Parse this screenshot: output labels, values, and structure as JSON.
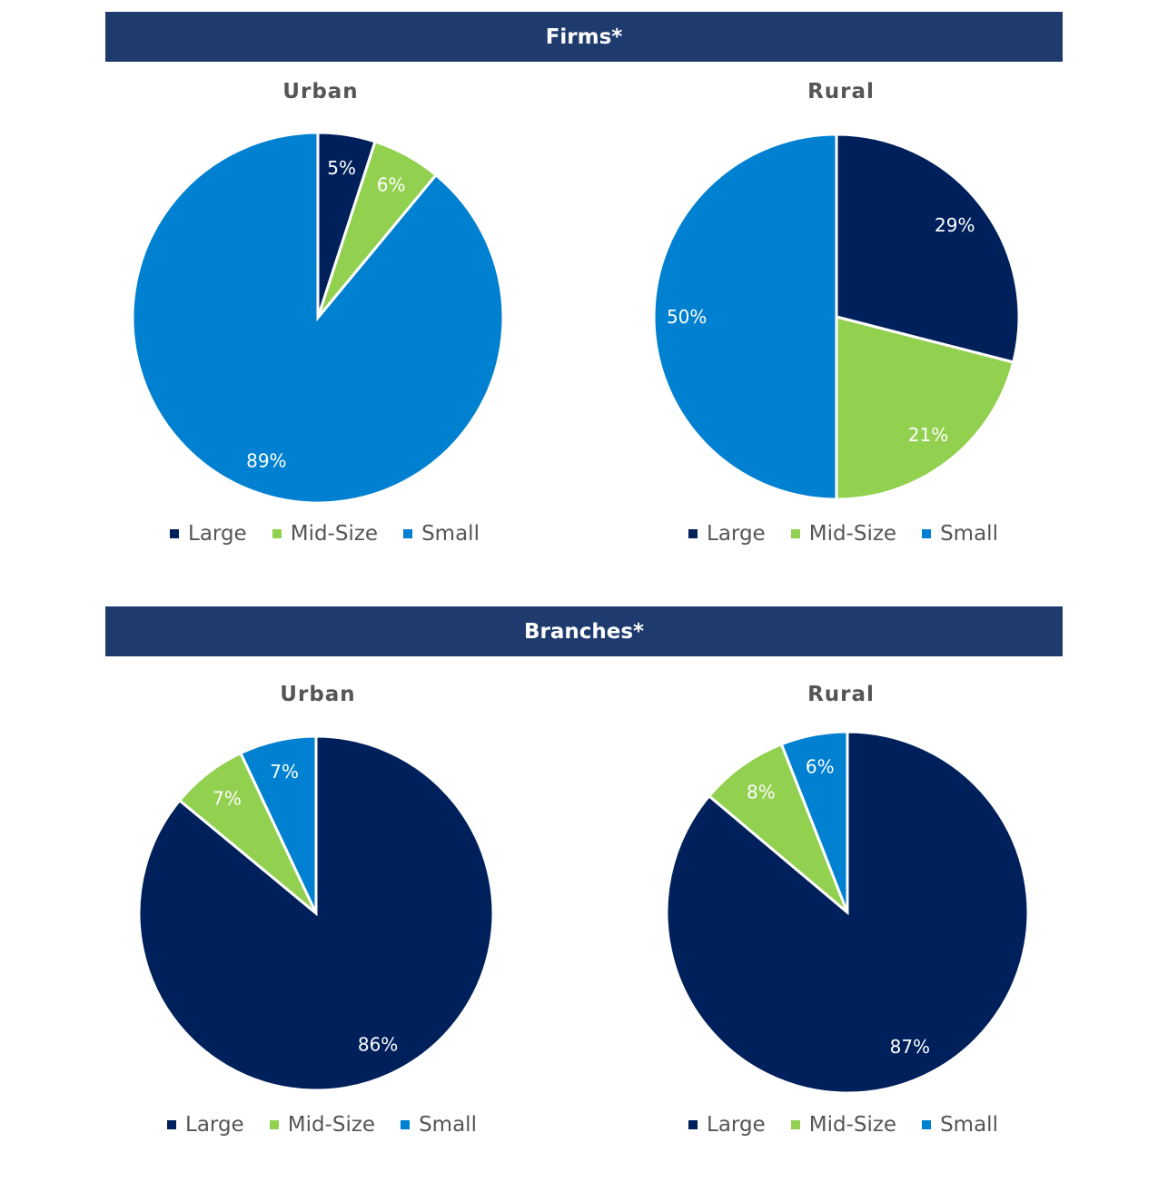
{
  "sections": [
    {
      "title": "Firms*"
    },
    {
      "title": "Branches*"
    }
  ],
  "colors": {
    "Large": "#00205b",
    "Mid-Size": "#92d050",
    "Small": "#0080d0",
    "header": "#1f3b6e"
  },
  "chart_data": [
    {
      "type": "pie",
      "section": "Firms*",
      "title": "Urban",
      "categories": [
        "Large",
        "Mid-Size",
        "Small"
      ],
      "values": [
        5,
        6,
        89
      ],
      "data_labels": [
        "5%",
        "6%",
        "89%"
      ],
      "legend": [
        "Large",
        "Mid-Size",
        "Small"
      ],
      "legend_position": "bottom"
    },
    {
      "type": "pie",
      "section": "Firms*",
      "title": "Rural",
      "categories": [
        "Large",
        "Mid-Size",
        "Small"
      ],
      "values": [
        29,
        21,
        50
      ],
      "data_labels": [
        "29%",
        "21%",
        "50%"
      ],
      "legend": [
        "Large",
        "Mid-Size",
        "Small"
      ],
      "legend_position": "bottom"
    },
    {
      "type": "pie",
      "section": "Branches*",
      "title": "Urban",
      "categories": [
        "Large",
        "Mid-Size",
        "Small"
      ],
      "values": [
        86,
        7,
        7
      ],
      "data_labels": [
        "86%",
        "7%",
        "7%"
      ],
      "legend": [
        "Large",
        "Mid-Size",
        "Small"
      ],
      "legend_position": "bottom"
    },
    {
      "type": "pie",
      "section": "Branches*",
      "title": "Rural",
      "categories": [
        "Large",
        "Mid-Size",
        "Small"
      ],
      "values": [
        87,
        8,
        6
      ],
      "data_labels": [
        "87%",
        "8%",
        "6%"
      ],
      "legend": [
        "Large",
        "Mid-Size",
        "Small"
      ],
      "legend_position": "bottom"
    }
  ]
}
